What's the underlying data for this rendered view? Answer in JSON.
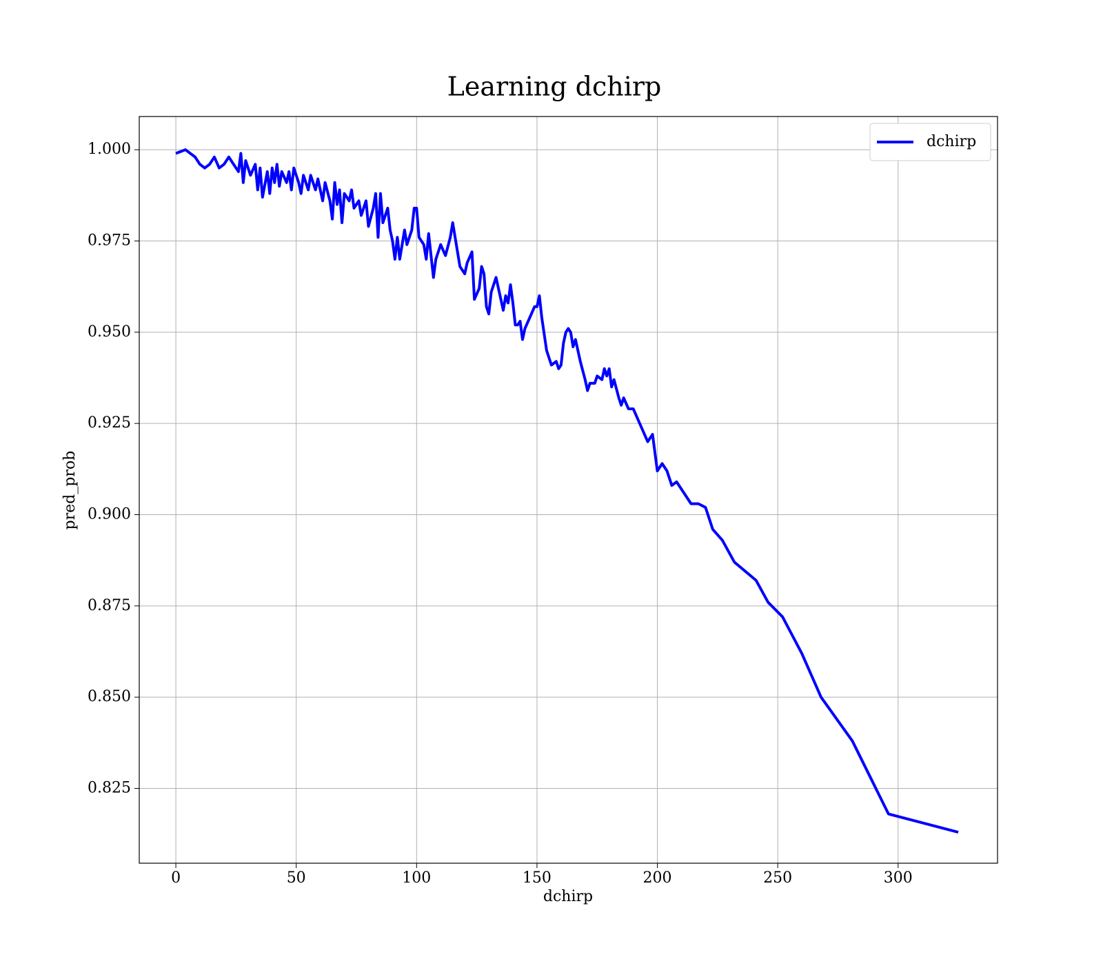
{
  "chart_data": {
    "type": "line",
    "title": "Learning dchirp",
    "x_label": "dchirp",
    "y_label": "pred_prob",
    "x": [
      0,
      4,
      8,
      10,
      12,
      14,
      16,
      18,
      20,
      22,
      24,
      26,
      27,
      28,
      29,
      31,
      33,
      34,
      35,
      36,
      38,
      39,
      40,
      41,
      42,
      43,
      44,
      46,
      47,
      48,
      49,
      51,
      52,
      53,
      55,
      56,
      58,
      59,
      61,
      62,
      64,
      65,
      66,
      67,
      68,
      69,
      70,
      72,
      73,
      74,
      76,
      77,
      79,
      80,
      82,
      83,
      84,
      85,
      86,
      88,
      89,
      90,
      91,
      92,
      93,
      95,
      96,
      98,
      99,
      100,
      101,
      103,
      104,
      105,
      107,
      108,
      110,
      112,
      114,
      115,
      117,
      118,
      120,
      121,
      123,
      124,
      126,
      127,
      128,
      129,
      130,
      131,
      133,
      134,
      136,
      137,
      138,
      139,
      140,
      141,
      142,
      143,
      144,
      145,
      147,
      149,
      150,
      151,
      152,
      154,
      156,
      158,
      159,
      160,
      161,
      162,
      163,
      164,
      165,
      166,
      168,
      170,
      171,
      172,
      174,
      175,
      177,
      178,
      179,
      180,
      181,
      182,
      184,
      185,
      186,
      188,
      190,
      192,
      194,
      196,
      198,
      200,
      202,
      204,
      206,
      208,
      211,
      214,
      217,
      220,
      223,
      227,
      232,
      241,
      246,
      252,
      260,
      268,
      281,
      296,
      325
    ],
    "series": [
      {
        "name": "dchirp",
        "color": "#0000ff",
        "values": [
          0.999,
          1.0,
          0.998,
          0.996,
          0.995,
          0.996,
          0.998,
          0.995,
          0.996,
          0.998,
          0.996,
          0.994,
          0.999,
          0.991,
          0.997,
          0.993,
          0.996,
          0.989,
          0.995,
          0.987,
          0.994,
          0.988,
          0.995,
          0.991,
          0.996,
          0.99,
          0.994,
          0.991,
          0.994,
          0.989,
          0.995,
          0.991,
          0.988,
          0.993,
          0.989,
          0.993,
          0.989,
          0.992,
          0.986,
          0.991,
          0.986,
          0.981,
          0.991,
          0.985,
          0.989,
          0.98,
          0.988,
          0.986,
          0.989,
          0.984,
          0.986,
          0.982,
          0.986,
          0.979,
          0.984,
          0.988,
          0.976,
          0.988,
          0.98,
          0.984,
          0.978,
          0.975,
          0.97,
          0.976,
          0.97,
          0.978,
          0.974,
          0.978,
          0.984,
          0.984,
          0.976,
          0.974,
          0.97,
          0.977,
          0.965,
          0.97,
          0.974,
          0.971,
          0.976,
          0.98,
          0.972,
          0.968,
          0.966,
          0.969,
          0.972,
          0.959,
          0.962,
          0.968,
          0.966,
          0.957,
          0.955,
          0.961,
          0.965,
          0.962,
          0.956,
          0.96,
          0.958,
          0.963,
          0.958,
          0.952,
          0.952,
          0.953,
          0.948,
          0.951,
          0.954,
          0.957,
          0.957,
          0.96,
          0.954,
          0.945,
          0.941,
          0.942,
          0.94,
          0.941,
          0.947,
          0.95,
          0.951,
          0.95,
          0.946,
          0.948,
          0.942,
          0.937,
          0.934,
          0.936,
          0.936,
          0.938,
          0.937,
          0.94,
          0.938,
          0.94,
          0.935,
          0.937,
          0.932,
          0.93,
          0.932,
          0.929,
          0.929,
          0.926,
          0.923,
          0.92,
          0.922,
          0.912,
          0.914,
          0.912,
          0.908,
          0.909,
          0.906,
          0.903,
          0.903,
          0.902,
          0.896,
          0.893,
          0.887,
          0.882,
          0.876,
          0.872,
          0.862,
          0.85,
          0.838,
          0.818,
          0.813
        ]
      }
    ],
    "xlim": [
      -15.2,
      341.3
    ],
    "ylim": [
      0.8045,
      1.0091
    ],
    "xticks": [
      0,
      50,
      100,
      150,
      200,
      250,
      300
    ],
    "yticks": [
      0.825,
      {
        "value": 0.85,
        "label": "0.850"
      },
      0.875,
      {
        "value": 0.9,
        "label": "0.900"
      },
      0.925,
      {
        "value": 0.95,
        "label": "0.950"
      },
      0.975,
      {
        "value": 1.0,
        "label": "1.000"
      }
    ],
    "grid": true,
    "legend": "upper right"
  }
}
